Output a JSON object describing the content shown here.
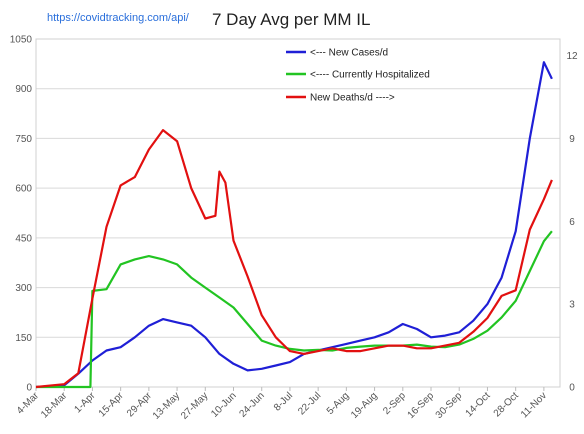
{
  "chart_data": {
    "type": "line",
    "title": "7 Day Avg per MM IL",
    "source": "https://covidtracking.com/api/",
    "x_ticks": [
      "4-Mar",
      "18-Mar",
      "1-Apr",
      "15-Apr",
      "29-Apr",
      "13-May",
      "27-May",
      "10-Jun",
      "24-Jun",
      "8-Jul",
      "22-Jul",
      "5-Aug",
      "19-Aug",
      "2-Sep",
      "16-Sep",
      "30-Sep",
      "14-Oct",
      "28-Oct",
      "11-Nov"
    ],
    "y_left": {
      "ticks": [
        "0",
        "150",
        "300",
        "450",
        "600",
        "750",
        "900",
        "1050"
      ],
      "min": 0,
      "max": 1050
    },
    "y_right": {
      "ticks": [
        "0",
        "3",
        "6",
        "9",
        "12"
      ],
      "min": 0,
      "max": 12.6
    },
    "legend": {
      "placement": "top-right"
    },
    "series": [
      {
        "name": "<---   New Cases/d",
        "axis": "left",
        "color": "#1f1fd6",
        "x": [
          "2020-03-04",
          "2020-03-18",
          "2020-03-25",
          "2020-04-01",
          "2020-04-08",
          "2020-04-15",
          "2020-04-22",
          "2020-04-29",
          "2020-05-06",
          "2020-05-13",
          "2020-05-20",
          "2020-05-27",
          "2020-06-03",
          "2020-06-10",
          "2020-06-17",
          "2020-06-24",
          "2020-07-01",
          "2020-07-08",
          "2020-07-15",
          "2020-07-22",
          "2020-07-29",
          "2020-08-05",
          "2020-08-12",
          "2020-08-19",
          "2020-08-26",
          "2020-09-02",
          "2020-09-09",
          "2020-09-16",
          "2020-09-23",
          "2020-09-30",
          "2020-10-07",
          "2020-10-14",
          "2020-10-21",
          "2020-10-28",
          "2020-11-04",
          "2020-11-11",
          "2020-11-15"
        ],
        "y": [
          0,
          5,
          40,
          80,
          110,
          120,
          150,
          185,
          205,
          195,
          185,
          150,
          100,
          70,
          50,
          55,
          65,
          75,
          100,
          110,
          120,
          130,
          140,
          150,
          165,
          190,
          175,
          150,
          155,
          165,
          200,
          250,
          330,
          470,
          750,
          980,
          930
        ]
      },
      {
        "name": "<---- Currently Hospitalized",
        "axis": "left",
        "color": "#22c422",
        "x": [
          "2020-03-04",
          "2020-03-18",
          "2020-03-31",
          "2020-04-01",
          "2020-04-08",
          "2020-04-15",
          "2020-04-22",
          "2020-04-29",
          "2020-05-06",
          "2020-05-13",
          "2020-05-20",
          "2020-05-27",
          "2020-06-03",
          "2020-06-10",
          "2020-06-17",
          "2020-06-24",
          "2020-07-01",
          "2020-07-08",
          "2020-07-15",
          "2020-07-22",
          "2020-07-29",
          "2020-08-05",
          "2020-08-12",
          "2020-08-19",
          "2020-08-26",
          "2020-09-02",
          "2020-09-09",
          "2020-09-16",
          "2020-09-23",
          "2020-09-30",
          "2020-10-07",
          "2020-10-14",
          "2020-10-21",
          "2020-10-28",
          "2020-11-04",
          "2020-11-11",
          "2020-11-15"
        ],
        "y": [
          0,
          0,
          0,
          290,
          295,
          370,
          385,
          395,
          385,
          370,
          330,
          300,
          270,
          240,
          190,
          140,
          125,
          115,
          110,
          112,
          110,
          118,
          122,
          125,
          125,
          125,
          128,
          122,
          120,
          128,
          145,
          170,
          210,
          260,
          350,
          440,
          470
        ]
      },
      {
        "name": "New Deaths/d ---->",
        "axis": "right",
        "color": "#e21010",
        "x": [
          "2020-03-04",
          "2020-03-18",
          "2020-03-25",
          "2020-04-01",
          "2020-04-08",
          "2020-04-15",
          "2020-04-22",
          "2020-04-29",
          "2020-05-06",
          "2020-05-13",
          "2020-05-20",
          "2020-05-27",
          "2020-06-01",
          "2020-06-03",
          "2020-06-06",
          "2020-06-10",
          "2020-06-17",
          "2020-06-24",
          "2020-07-01",
          "2020-07-08",
          "2020-07-15",
          "2020-07-22",
          "2020-07-29",
          "2020-08-05",
          "2020-08-12",
          "2020-08-19",
          "2020-08-26",
          "2020-09-02",
          "2020-09-09",
          "2020-09-16",
          "2020-09-23",
          "2020-09-30",
          "2020-10-07",
          "2020-10-14",
          "2020-10-21",
          "2020-10-28",
          "2020-11-04",
          "2020-11-11",
          "2020-11-15"
        ],
        "y": [
          0,
          0.1,
          0.5,
          3.2,
          5.8,
          7.3,
          7.6,
          8.6,
          9.3,
          8.9,
          7.2,
          6.1,
          6.2,
          7.8,
          7.4,
          5.3,
          4.0,
          2.6,
          1.8,
          1.3,
          1.2,
          1.3,
          1.4,
          1.3,
          1.3,
          1.4,
          1.5,
          1.5,
          1.4,
          1.4,
          1.5,
          1.6,
          2.0,
          2.5,
          3.3,
          3.5,
          5.7,
          6.8,
          7.5
        ]
      }
    ],
    "grid": true
  }
}
